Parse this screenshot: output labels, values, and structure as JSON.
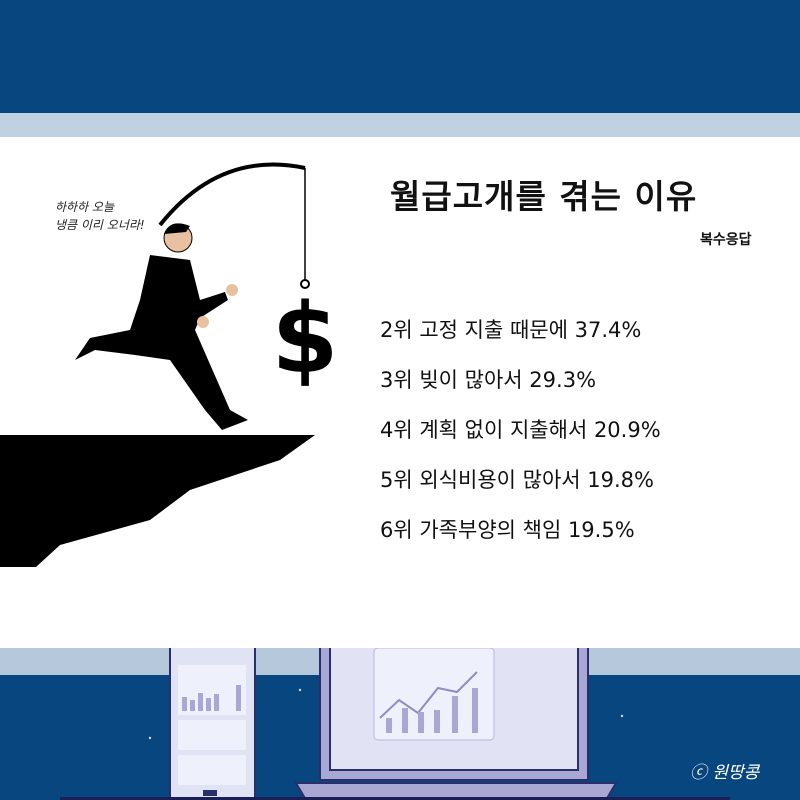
{
  "title": "월급고개를 겪는 이유",
  "subtitle": "복수응답",
  "reasons": [
    "2위 고정 지출 때문에 37.4%",
    "3위 빚이 많아서 29.3%",
    "4위 계획 없이 지출해서 20.9%",
    "5위 외식비용이 많아서 19.8%",
    "6위 가족부양의 책임 19.5%"
  ],
  "speech": {
    "line1": "하하하 오늘",
    "line2": "냉큼 이리 오너라!"
  },
  "dollar_sign": "$",
  "copyright": "ⓒ 원땅콩",
  "colors": {
    "background": "#08467f",
    "band": "#c0d1e1",
    "panel": "#ffffff"
  }
}
